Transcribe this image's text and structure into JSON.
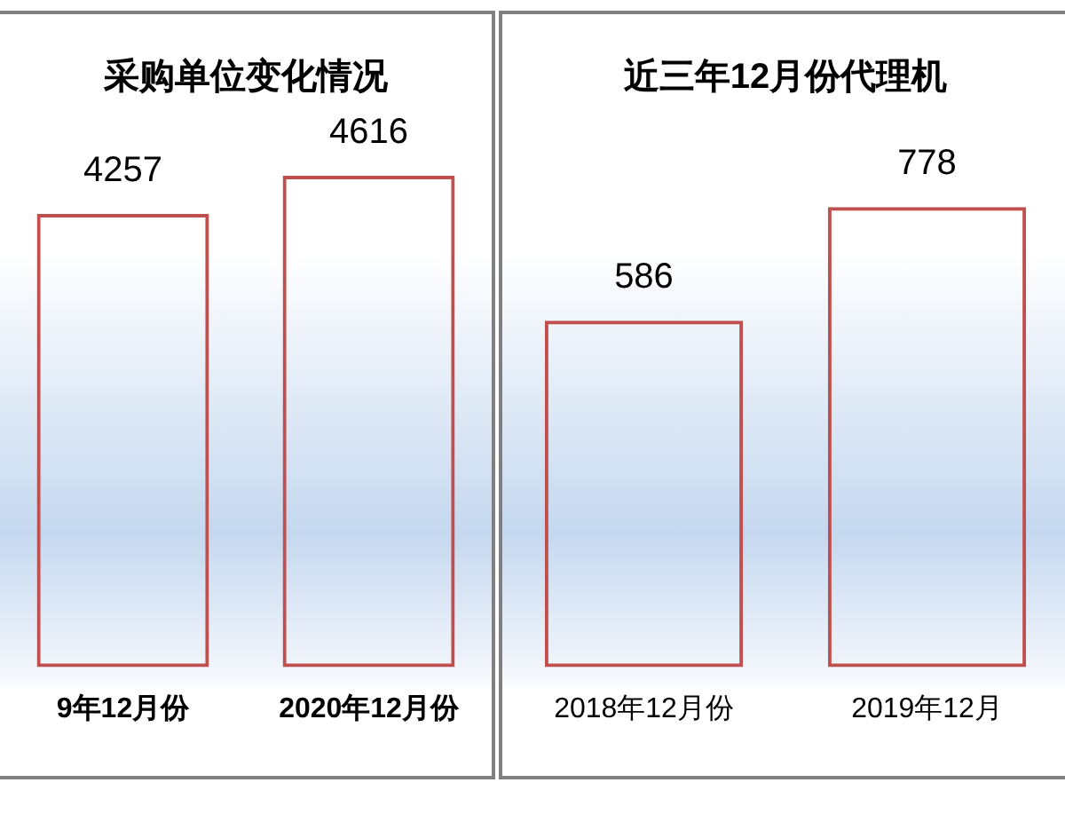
{
  "chart_data": [
    {
      "type": "bar",
      "title": "采购单位变化情况",
      "categories": [
        "9年12月份",
        "2020年12月份"
      ],
      "values": [
        4257,
        4616
      ],
      "color": "#c0504d",
      "data_labels": true
    },
    {
      "type": "bar",
      "title": "近三年12月份代理机",
      "categories": [
        "2018年12月份",
        "2019年12月"
      ],
      "values": [
        586,
        778
      ],
      "color": "#c0504d",
      "data_labels": true
    }
  ]
}
